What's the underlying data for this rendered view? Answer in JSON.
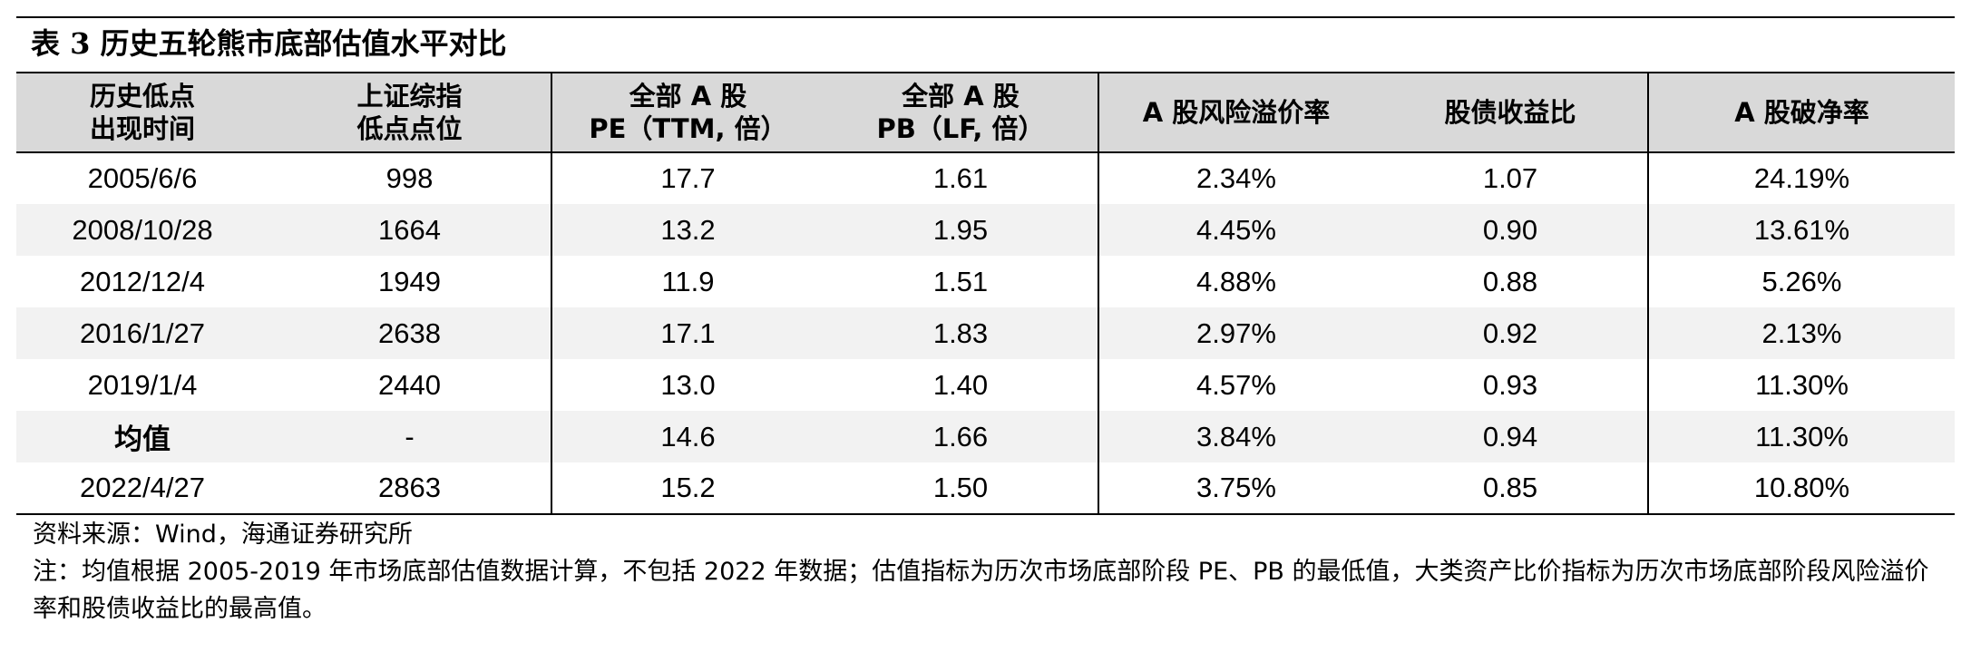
{
  "title": "表 3  历史五轮熊市底部估值水平对比",
  "table": {
    "headers": [
      [
        "历史低点",
        "出现时间"
      ],
      [
        "上证综指",
        "低点点位"
      ],
      [
        "全部 A 股",
        "PE（TTM, 倍）"
      ],
      [
        "全部 A 股",
        "PB（LF, 倍）"
      ],
      [
        "A 股风险溢价率"
      ],
      [
        "股债收益比"
      ],
      [
        "A 股破净率"
      ]
    ],
    "rows": [
      [
        "2005/6/6",
        "998",
        "17.7",
        "1.61",
        "2.34%",
        "1.07",
        "24.19%"
      ],
      [
        "2008/10/28",
        "1664",
        "13.2",
        "1.95",
        "4.45%",
        "0.90",
        "13.61%"
      ],
      [
        "2012/12/4",
        "1949",
        "11.9",
        "1.51",
        "4.88%",
        "0.88",
        "5.26%"
      ],
      [
        "2016/1/27",
        "2638",
        "17.1",
        "1.83",
        "2.97%",
        "0.92",
        "2.13%"
      ],
      [
        "2019/1/4",
        "2440",
        "13.0",
        "1.40",
        "4.57%",
        "0.93",
        "11.30%"
      ],
      [
        "均值",
        "-",
        "14.6",
        "1.66",
        "3.84%",
        "0.94",
        "11.30%"
      ],
      [
        "2022/4/27",
        "2863",
        "15.2",
        "1.50",
        "3.75%",
        "0.85",
        "10.80%"
      ]
    ]
  },
  "source": "资料来源：Wind，海通证券研究所",
  "note": "注：均值根据 2005-2019 年市场底部估值数据计算，不包括 2022 年数据；估值指标为历次市场底部阶段 PE、PB 的最低值，大类资产比价指标为历次市场底部阶段风险溢价率和股债收益比的最高值。"
}
